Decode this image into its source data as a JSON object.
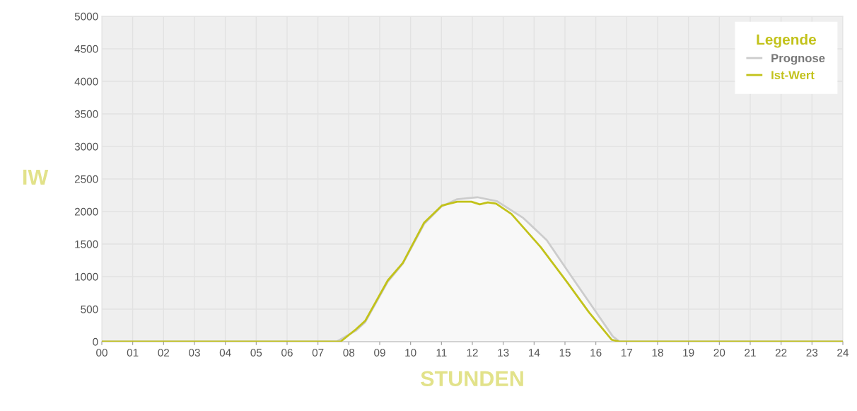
{
  "chart_data": {
    "type": "line",
    "xlabel": "STUNDEN",
    "ylabel": "IW",
    "legend_title": "Legende",
    "series": [
      {
        "name": "Prognose",
        "type": "area",
        "color": "#cccccc",
        "x": [
          0,
          7.6,
          8.23,
          8.53,
          9.26,
          9.75,
          10.44,
          11.01,
          11.51,
          12.16,
          12.79,
          13.65,
          14.41,
          15.17,
          15.94,
          16.55,
          16.78,
          24
        ],
        "values": [
          0,
          0,
          170,
          300,
          920,
          1200,
          1810,
          2080,
          2190,
          2220,
          2160,
          1900,
          1560,
          1030,
          500,
          80,
          0,
          0
        ]
      },
      {
        "name": "Ist-Wert",
        "color": "#c2c21a",
        "x": [
          0,
          7.73,
          8.23,
          8.53,
          9.26,
          9.75,
          10.44,
          11.01,
          11.51,
          11.97,
          12.24,
          12.5,
          12.77,
          13.27,
          14.22,
          15.06,
          15.78,
          16.51,
          16.78,
          24
        ],
        "values": [
          0,
          0,
          190,
          320,
          940,
          1210,
          1830,
          2090,
          2150,
          2150,
          2110,
          2140,
          2120,
          1960,
          1450,
          920,
          450,
          30,
          0,
          0
        ]
      }
    ],
    "xlim": [
      0,
      24
    ],
    "xticks": [
      {
        "value": 0,
        "label": "00"
      },
      {
        "value": 1,
        "label": "01"
      },
      {
        "value": 2,
        "label": "02"
      },
      {
        "value": 3,
        "label": "03"
      },
      {
        "value": 4,
        "label": "04"
      },
      {
        "value": 5,
        "label": "05"
      },
      {
        "value": 6,
        "label": "06"
      },
      {
        "value": 7,
        "label": "07"
      },
      {
        "value": 8,
        "label": "08"
      },
      {
        "value": 9,
        "label": "09"
      },
      {
        "value": 10,
        "label": "10"
      },
      {
        "value": 11,
        "label": "11"
      },
      {
        "value": 12,
        "label": "12"
      },
      {
        "value": 13,
        "label": "13"
      },
      {
        "value": 14,
        "label": "14"
      },
      {
        "value": 15,
        "label": "15"
      },
      {
        "value": 16,
        "label": "16"
      },
      {
        "value": 17,
        "label": "17"
      },
      {
        "value": 18,
        "label": "18"
      },
      {
        "value": 19,
        "label": "19"
      },
      {
        "value": 20,
        "label": "20"
      },
      {
        "value": 21,
        "label": "21"
      },
      {
        "value": 22,
        "label": "22"
      },
      {
        "value": 23,
        "label": "23"
      },
      {
        "value": 24,
        "label": "24"
      }
    ],
    "ylim": [
      0,
      5000
    ],
    "yticks": [
      0,
      500,
      1000,
      1500,
      2000,
      2500,
      3000,
      3500,
      4000,
      4500,
      5000
    ],
    "grid": true,
    "legend": "top right",
    "marker": "none",
    "line_style": "solid"
  }
}
